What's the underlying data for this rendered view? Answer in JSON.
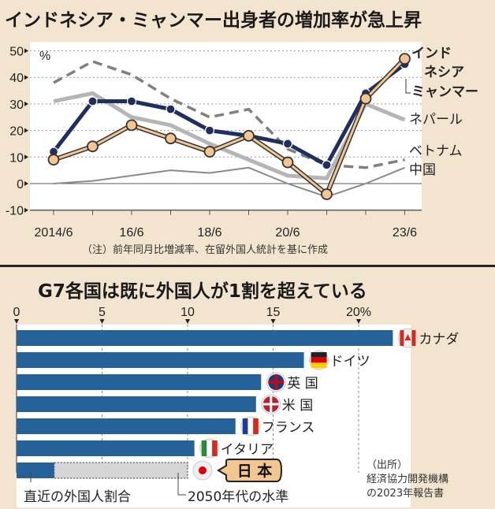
{
  "chart_data": [
    {
      "type": "line",
      "title": "インドネシア・ミャンマー出身者の増加率が急上昇",
      "ylabel": "%",
      "ylim": [
        -10,
        50
      ],
      "yticks": [
        "50",
        "40",
        "30",
        "20",
        "10",
        "0",
        "-10"
      ],
      "x": [
        "2014/6",
        "15/6",
        "16/6",
        "17/6",
        "18/6",
        "19/6",
        "20/6",
        "21/6",
        "22/6",
        "23/6"
      ],
      "xtick_labels": [
        "2014/6",
        "",
        "16/6",
        "",
        "18/6",
        "",
        "20/6",
        "",
        "",
        "23/6"
      ],
      "grid": true,
      "series": [
        {
          "name": "ベトナム",
          "color": "#808080",
          "style": "dashed",
          "values": [
            38,
            46,
            41,
            32,
            25,
            28,
            13,
            7,
            6,
            9
          ]
        },
        {
          "name": "ネパール",
          "color": "#b5b5b5",
          "style": "thick",
          "values": [
            31,
            34,
            25,
            22,
            15,
            9,
            3,
            2,
            30,
            24
          ]
        },
        {
          "name": "中国",
          "color": "#8a8a8a",
          "style": "thin",
          "values": [
            0,
            1,
            3,
            5,
            4,
            6,
            0,
            -5,
            0,
            6
          ]
        },
        {
          "name": "インドネシア",
          "color": "#1f2f5e",
          "style": "markers",
          "values": [
            12,
            31,
            31,
            28,
            20,
            18,
            15,
            7,
            34,
            45
          ]
        },
        {
          "name": "ミャンマー",
          "color": "#f3c590",
          "style": "markers",
          "values": [
            9,
            14,
            22,
            17,
            12,
            18,
            8,
            -4,
            32,
            47
          ]
        }
      ],
      "series_labels": {
        "indonesia_1": "インド",
        "indonesia_2": "ネシア"
      },
      "note": "（注）前年同月比増減率、在留外国人統計を基に作成"
    },
    {
      "type": "bar",
      "orientation": "horizontal",
      "title": "G7各国は既に外国人が1割を超えている",
      "xlim": [
        0,
        22
      ],
      "xticks": [
        "0",
        "5",
        "10",
        "15",
        "20%"
      ],
      "categories": [
        "カナダ",
        "ドイツ",
        "英 国",
        "米 国",
        "フランス",
        "イタリア",
        "日 本"
      ],
      "values": [
        22,
        16.8,
        14.3,
        14,
        12.8,
        10.4,
        2.2
      ],
      "bar_color": "#256299",
      "projection": {
        "category": "日 本",
        "value": 10,
        "label": "2050年代の水準",
        "color": "#d5d5d5"
      },
      "current_label": "直近の外国人割合",
      "flags": [
        "canada-flag",
        "germany-flag",
        "uk-flag",
        "usa-flag",
        "france-flag",
        "italy-flag",
        "japan-flag"
      ],
      "source": [
        "（出所）",
        "経済協力開発機構",
        "の2023年報告書"
      ]
    }
  ]
}
